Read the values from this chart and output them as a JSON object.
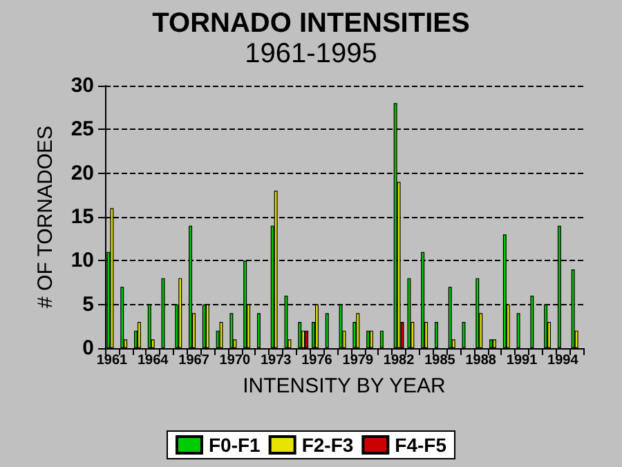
{
  "chart_data": {
    "type": "bar",
    "title": "TORNADO INTENSITIES",
    "subtitle": "1961-1995",
    "xlabel": "INTENSITY BY YEAR",
    "ylabel": "# OF TORNADOES",
    "categories": [
      "1961",
      null,
      null,
      "1964",
      null,
      null,
      "1967",
      null,
      null,
      "1970",
      null,
      null,
      "1973",
      null,
      null,
      "1976",
      null,
      null,
      "1979",
      null,
      null,
      "1982",
      null,
      null,
      "1985",
      null,
      null,
      "1988",
      null,
      null,
      "1991",
      null,
      null,
      "1994",
      null
    ],
    "series": [
      {
        "name": "F0-F1",
        "color": "#00cc00",
        "values": [
          11,
          7,
          2,
          5,
          8,
          5,
          14,
          5,
          2,
          4,
          10,
          4,
          14,
          6,
          3,
          3,
          4,
          5,
          3,
          2,
          2,
          28,
          8,
          11,
          3,
          7,
          3,
          8,
          1,
          13,
          4,
          6,
          5,
          14,
          9
        ]
      },
      {
        "name": "F2-F3",
        "color": "#e5e500",
        "values": [
          16,
          1,
          3,
          1,
          0,
          8,
          4,
          5,
          3,
          1,
          5,
          0,
          18,
          1,
          2,
          5,
          0,
          2,
          4,
          2,
          0,
          19,
          3,
          3,
          0,
          1,
          0,
          4,
          1,
          5,
          0,
          0,
          3,
          0,
          2
        ]
      },
      {
        "name": "F4-F5",
        "color": "#cc0000",
        "values": [
          0,
          0,
          0,
          0,
          0,
          0,
          0,
          0,
          0,
          0,
          0,
          0,
          0,
          0,
          2,
          0,
          0,
          0,
          0,
          0,
          0,
          3,
          0,
          0,
          0,
          0,
          0,
          0,
          0,
          0,
          0,
          0,
          0,
          0,
          0
        ]
      }
    ],
    "ylim": [
      0,
      30
    ],
    "yticks": [
      0,
      5,
      10,
      15,
      20,
      25,
      30
    ],
    "grid": "y",
    "legend": "bottom"
  }
}
